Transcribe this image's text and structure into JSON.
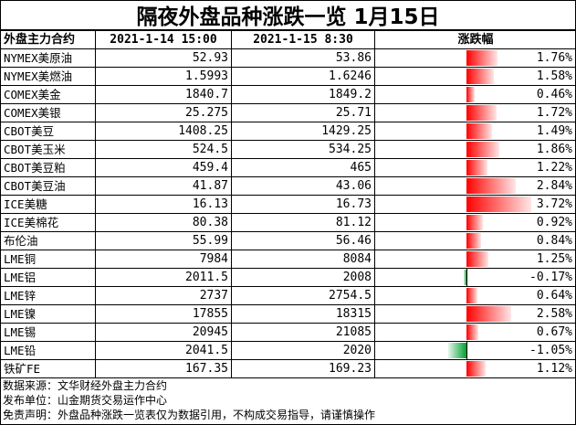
{
  "title": "隔夜外盘品种涨跌一览 1月15日",
  "headers": [
    "外盘主力合约",
    "2021-1-14 15:00",
    "2021-1-15 8:30",
    "涨跌幅"
  ],
  "rows": [
    {
      "name": "NYMEX美原油",
      "prev": "52.93",
      "curr": "53.86",
      "change": "1.76%",
      "pct": 1.76
    },
    {
      "name": "NYMEX美燃油",
      "prev": "1.5993",
      "curr": "1.6246",
      "change": "1.58%",
      "pct": 1.58
    },
    {
      "name": "COMEX美金",
      "prev": "1840.7",
      "curr": "1849.2",
      "change": "0.46%",
      "pct": 0.46
    },
    {
      "name": "COMEX美银",
      "prev": "25.275",
      "curr": "25.71",
      "change": "1.72%",
      "pct": 1.72
    },
    {
      "name": "CBOT美豆",
      "prev": "1408.25",
      "curr": "1429.25",
      "change": "1.49%",
      "pct": 1.49
    },
    {
      "name": "CBOT美玉米",
      "prev": "524.5",
      "curr": "534.25",
      "change": "1.86%",
      "pct": 1.86
    },
    {
      "name": "CBOT美豆粕",
      "prev": "459.4",
      "curr": "465",
      "change": "1.22%",
      "pct": 1.22
    },
    {
      "name": "CBOT美豆油",
      "prev": "41.87",
      "curr": "43.06",
      "change": "2.84%",
      "pct": 2.84
    },
    {
      "name": "ICE美糖",
      "prev": "16.13",
      "curr": "16.73",
      "change": "3.72%",
      "pct": 3.72
    },
    {
      "name": "ICE美棉花",
      "prev": "80.38",
      "curr": "81.12",
      "change": "0.92%",
      "pct": 0.92
    },
    {
      "name": "布伦油",
      "prev": "55.99",
      "curr": "56.46",
      "change": "0.84%",
      "pct": 0.84
    },
    {
      "name": "LME铜",
      "prev": "7984",
      "curr": "8084",
      "change": "1.25%",
      "pct": 1.25
    },
    {
      "name": "LME铝",
      "prev": "2011.5",
      "curr": "2008",
      "change": "-0.17%",
      "pct": -0.17
    },
    {
      "name": "LME锌",
      "prev": "2737",
      "curr": "2754.5",
      "change": "0.64%",
      "pct": 0.64
    },
    {
      "name": "LME镍",
      "prev": "17855",
      "curr": "18315",
      "change": "2.58%",
      "pct": 2.58
    },
    {
      "name": "LME锡",
      "prev": "20945",
      "curr": "21085",
      "change": "0.67%",
      "pct": 0.67
    },
    {
      "name": "LME铅",
      "prev": "2041.5",
      "curr": "2020",
      "change": "-1.05%",
      "pct": -1.05
    },
    {
      "name": "铁矿FE",
      "prev": "167.35",
      "curr": "169.23",
      "change": "1.12%",
      "pct": 1.12
    }
  ],
  "bar_colors": {
    "positive": "#ff0000",
    "negative": "#00a032"
  },
  "notes": [
    "数据来源：文华财经外盘主力合约",
    "发布单位：山金期货交易运作中心",
    "免责声明：外盘品种涨跌一览表仅为数据引用，不构成交易指导，请谨慎操作"
  ]
}
